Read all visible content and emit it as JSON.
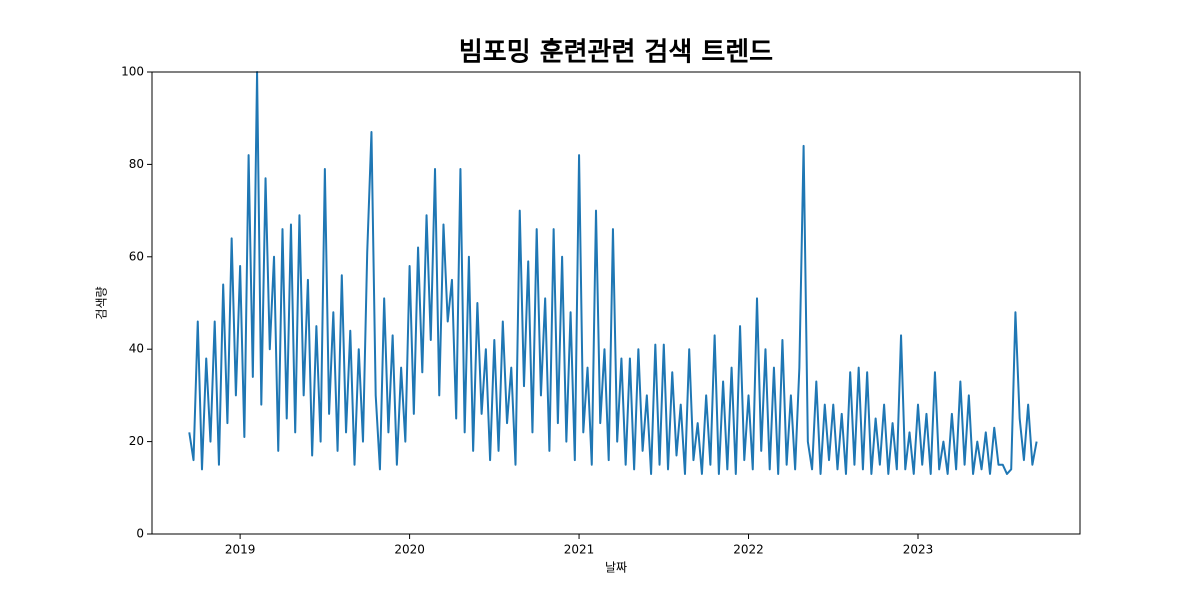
{
  "chart_data": {
    "type": "line",
    "title": "빔포밍 훈련관련 검색 트렌드",
    "xlabel": "날짜",
    "ylabel": "검색량",
    "x": [
      2018.7,
      2018.725,
      2018.75,
      2018.775,
      2018.8,
      2018.825,
      2018.85,
      2018.875,
      2018.9,
      2018.925,
      2018.95,
      2018.975,
      2019.0,
      2019.025,
      2019.05,
      2019.075,
      2019.1,
      2019.125,
      2019.15,
      2019.175,
      2019.2,
      2019.225,
      2019.25,
      2019.275,
      2019.3,
      2019.325,
      2019.35,
      2019.375,
      2019.4,
      2019.425,
      2019.45,
      2019.475,
      2019.5,
      2019.525,
      2019.55,
      2019.575,
      2019.6,
      2019.625,
      2019.65,
      2019.675,
      2019.7,
      2019.725,
      2019.75,
      2019.775,
      2019.8,
      2019.825,
      2019.85,
      2019.875,
      2019.9,
      2019.925,
      2019.95,
      2019.975,
      2020.0,
      2020.025,
      2020.05,
      2020.075,
      2020.1,
      2020.125,
      2020.15,
      2020.175,
      2020.2,
      2020.225,
      2020.25,
      2020.275,
      2020.3,
      2020.325,
      2020.35,
      2020.375,
      2020.4,
      2020.425,
      2020.45,
      2020.475,
      2020.5,
      2020.525,
      2020.55,
      2020.575,
      2020.6,
      2020.625,
      2020.65,
      2020.675,
      2020.7,
      2020.725,
      2020.75,
      2020.775,
      2020.8,
      2020.825,
      2020.85,
      2020.875,
      2020.9,
      2020.925,
      2020.95,
      2020.975,
      2021.0,
      2021.025,
      2021.05,
      2021.075,
      2021.1,
      2021.125,
      2021.15,
      2021.175,
      2021.2,
      2021.225,
      2021.25,
      2021.275,
      2021.3,
      2021.325,
      2021.35,
      2021.375,
      2021.4,
      2021.425,
      2021.45,
      2021.475,
      2021.5,
      2021.525,
      2021.55,
      2021.575,
      2021.6,
      2021.625,
      2021.65,
      2021.675,
      2021.7,
      2021.725,
      2021.75,
      2021.775,
      2021.8,
      2021.825,
      2021.85,
      2021.875,
      2021.9,
      2021.925,
      2021.95,
      2021.975,
      2022.0,
      2022.025,
      2022.05,
      2022.075,
      2022.1,
      2022.125,
      2022.15,
      2022.175,
      2022.2,
      2022.225,
      2022.25,
      2022.275,
      2022.3,
      2022.325,
      2022.35,
      2022.375,
      2022.4,
      2022.425,
      2022.45,
      2022.475,
      2022.5,
      2022.525,
      2022.55,
      2022.575,
      2022.6,
      2022.625,
      2022.65,
      2022.675,
      2022.7,
      2022.725,
      2022.75,
      2022.775,
      2022.8,
      2022.825,
      2022.85,
      2022.875,
      2022.9,
      2022.925,
      2022.95,
      2022.975,
      2023.0,
      2023.025,
      2023.05,
      2023.075,
      2023.1,
      2023.125,
      2023.15,
      2023.175,
      2023.2,
      2023.225,
      2023.25,
      2023.275,
      2023.3,
      2023.325,
      2023.35,
      2023.375,
      2023.4,
      2023.425,
      2023.45,
      2023.475,
      2023.5,
      2023.525,
      2023.55,
      2023.575,
      2023.6,
      2023.625,
      2023.65,
      2023.675,
      2023.7
    ],
    "values": [
      22,
      16,
      46,
      14,
      38,
      20,
      46,
      15,
      54,
      24,
      64,
      30,
      58,
      21,
      82,
      34,
      100,
      28,
      77,
      40,
      60,
      18,
      66,
      25,
      67,
      22,
      69,
      30,
      55,
      17,
      45,
      20,
      79,
      26,
      48,
      18,
      56,
      22,
      44,
      15,
      40,
      20,
      61,
      87,
      30,
      14,
      51,
      22,
      43,
      15,
      36,
      20,
      58,
      26,
      62,
      35,
      69,
      42,
      79,
      30,
      67,
      46,
      55,
      25,
      79,
      22,
      60,
      18,
      50,
      26,
      40,
      16,
      42,
      18,
      46,
      24,
      36,
      15,
      70,
      32,
      59,
      22,
      66,
      30,
      51,
      18,
      66,
      24,
      60,
      20,
      48,
      16,
      82,
      22,
      36,
      15,
      70,
      24,
      40,
      16,
      66,
      20,
      38,
      15,
      38,
      14,
      40,
      18,
      30,
      13,
      41,
      15,
      41,
      14,
      35,
      17,
      28,
      13,
      40,
      16,
      24,
      13,
      30,
      15,
      43,
      13,
      33,
      14,
      36,
      13,
      45,
      16,
      30,
      14,
      51,
      18,
      40,
      14,
      36,
      13,
      42,
      15,
      30,
      14,
      36,
      84,
      20,
      14,
      33,
      13,
      28,
      16,
      28,
      14,
      26,
      13,
      35,
      15,
      36,
      14,
      35,
      13,
      25,
      15,
      28,
      13,
      24,
      14,
      43,
      14,
      22,
      13,
      28,
      15,
      26,
      13,
      35,
      14,
      20,
      13,
      26,
      14,
      33,
      15,
      30,
      13,
      20,
      14,
      22,
      13,
      23,
      15,
      15,
      13,
      14,
      48,
      25,
      16,
      28,
      15,
      20
    ],
    "color": "#1f77b4",
    "xlim": [
      2018.48,
      2023.956
    ],
    "xticks": [
      2019,
      2020,
      2021,
      2022,
      2023
    ],
    "ylim": [
      0,
      100
    ],
    "yticks": [
      0,
      20,
      40,
      60,
      80,
      100
    ]
  }
}
